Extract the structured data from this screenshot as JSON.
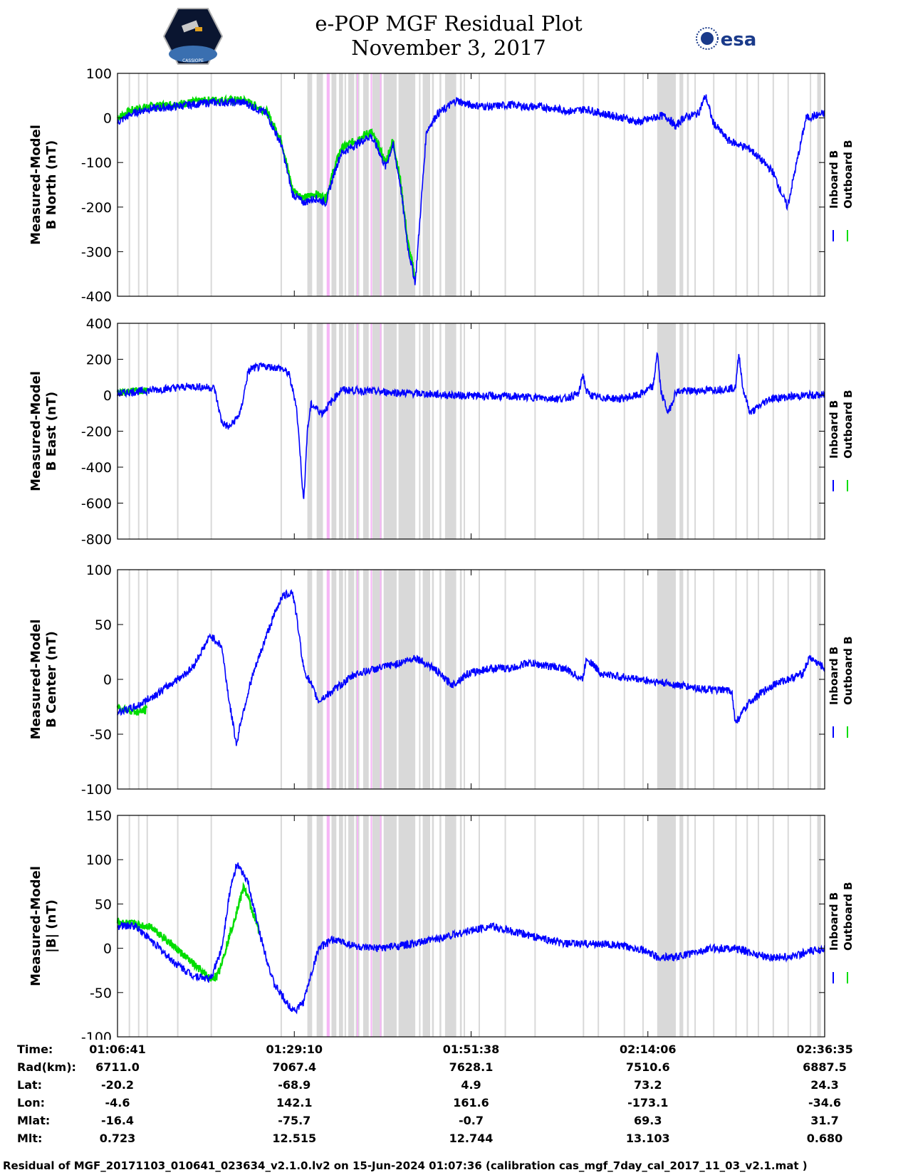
{
  "header": {
    "title_line1": "e-POP MGF Residual Plot",
    "title_line2": "November 3, 2017",
    "logo_left_text": "CASSIOPE",
    "logo_right_text": "esa"
  },
  "colors": {
    "inboard": "#0000ff",
    "outboard": "#00dd00",
    "gray_band": "#d9d9d9",
    "pink_band": "#f6b6f6"
  },
  "chart_data": [
    {
      "type": "line",
      "title": "",
      "ylabel_line1": "Measured-Model",
      "ylabel_line2": "B North (nT)",
      "ylim": [
        -400,
        100
      ],
      "yticks": [
        100,
        0,
        -100,
        -200,
        -300,
        -400
      ],
      "series": [
        {
          "name": "Inboard B",
          "color": "#0000ff",
          "x": [
            0,
            4,
            8,
            15,
            25,
            34,
            40,
            44,
            47,
            50,
            53,
            56,
            58,
            60,
            64,
            68,
            70,
            72,
            74,
            76,
            78,
            80,
            83,
            86,
            88,
            91,
            94,
            100,
            106,
            110,
            114,
            118,
            122,
            126,
            130,
            136,
            140,
            144,
            146,
            148,
            150,
            152,
            156,
            158,
            160,
            164,
            170,
            176,
            180,
            185,
            190
          ],
          "values": [
            -10,
            10,
            20,
            25,
            35,
            35,
            10,
            -60,
            -170,
            -190,
            -180,
            -190,
            -130,
            -80,
            -60,
            -40,
            -70,
            -110,
            -60,
            -150,
            -290,
            -370,
            -30,
            10,
            20,
            40,
            30,
            25,
            30,
            25,
            25,
            20,
            15,
            20,
            10,
            0,
            -10,
            0,
            5,
            0,
            -20,
            0,
            10,
            50,
            -10,
            -50,
            -70,
            -120,
            -200,
            0,
            10
          ]
        },
        {
          "name": "Outboard B",
          "color": "#00dd00",
          "x": [
            0,
            4,
            8,
            15,
            25,
            34,
            40,
            44,
            47,
            50,
            53,
            56,
            58,
            60,
            64,
            68,
            70,
            72,
            74,
            76,
            78,
            80
          ],
          "values": [
            0,
            18,
            25,
            30,
            40,
            40,
            15,
            -50,
            -160,
            -180,
            -170,
            -180,
            -120,
            -70,
            -50,
            -30,
            -60,
            -100,
            -50,
            -140,
            -280,
            -360
          ]
        }
      ],
      "legend": [
        "Inboard B",
        "Outboard B"
      ]
    },
    {
      "type": "line",
      "title": "",
      "ylabel_line1": "Measured-Model",
      "ylabel_line2": "B East (nT)",
      "ylim": [
        -800,
        400
      ],
      "yticks": [
        400,
        200,
        0,
        -200,
        -400,
        -600,
        -800
      ],
      "series": [
        {
          "name": "Inboard B",
          "color": "#0000ff",
          "x": [
            0,
            5,
            10,
            20,
            26,
            28,
            30,
            33,
            35,
            36,
            40,
            44,
            46,
            48,
            49,
            50,
            51,
            52,
            55,
            60,
            70,
            80,
            90,
            100,
            110,
            120,
            124,
            125,
            126,
            128,
            135,
            140,
            144,
            145,
            146,
            148,
            150,
            160,
            166,
            167,
            168,
            170,
            175,
            185,
            190
          ],
          "values": [
            10,
            20,
            30,
            50,
            40,
            -150,
            -180,
            -100,
            120,
            150,
            160,
            150,
            120,
            -50,
            -300,
            -600,
            -200,
            -50,
            -100,
            30,
            20,
            10,
            0,
            -5,
            -10,
            -20,
            10,
            120,
            20,
            -10,
            -20,
            0,
            50,
            250,
            20,
            -100,
            20,
            30,
            40,
            230,
            40,
            -100,
            -20,
            0,
            0
          ]
        },
        {
          "name": "Outboard B",
          "color": "#00dd00",
          "x": [
            0,
            5,
            8
          ],
          "values": [
            15,
            25,
            25
          ]
        }
      ],
      "legend": [
        "Inboard B",
        "Outboard B"
      ]
    },
    {
      "type": "line",
      "title": "",
      "ylabel_line1": "Measured-Model",
      "ylabel_line2": "B Center (nT)",
      "ylim": [
        -100,
        100
      ],
      "yticks": [
        100,
        50,
        0,
        -50,
        -100
      ],
      "series": [
        {
          "name": "Inboard B",
          "color": "#0000ff",
          "x": [
            0,
            5,
            12,
            20,
            25,
            28,
            30,
            32,
            33,
            36,
            40,
            44,
            47,
            48,
            50,
            54,
            58,
            64,
            70,
            76,
            80,
            85,
            88,
            90,
            94,
            100,
            106,
            110,
            120,
            125,
            126,
            130,
            140,
            150,
            160,
            165,
            166,
            170,
            176,
            180,
            184,
            186,
            190
          ],
          "values": [
            -30,
            -25,
            -10,
            10,
            40,
            30,
            -20,
            -60,
            -40,
            0,
            40,
            75,
            80,
            60,
            10,
            -20,
            -10,
            5,
            10,
            15,
            20,
            10,
            0,
            -5,
            5,
            10,
            10,
            15,
            10,
            0,
            20,
            5,
            0,
            -5,
            -10,
            -10,
            -40,
            -20,
            -5,
            0,
            5,
            20,
            10
          ]
        },
        {
          "name": "Outboard B",
          "color": "#00dd00",
          "x": [
            0,
            3,
            6,
            8
          ],
          "values": [
            -25,
            -28,
            -30,
            -27
          ]
        }
      ],
      "legend": [
        "Inboard B",
        "Outboard B"
      ]
    },
    {
      "type": "line",
      "title": "",
      "ylabel_line1": "Measured-Model",
      "ylabel_line2": "|B| (nT)",
      "ylim": [
        -100,
        150
      ],
      "yticks": [
        150,
        100,
        50,
        0,
        -50,
        -100
      ],
      "series": [
        {
          "name": "Inboard B",
          "color": "#0000ff",
          "x": [
            0,
            5,
            10,
            15,
            20,
            25,
            28,
            30,
            32,
            35,
            38,
            42,
            46,
            48,
            50,
            54,
            58,
            62,
            66,
            70,
            80,
            90,
            95,
            100,
            105,
            110,
            120,
            130,
            140,
            145,
            150,
            160,
            166,
            170,
            175,
            180,
            185,
            190
          ],
          "values": [
            25,
            25,
            5,
            -15,
            -30,
            -35,
            0,
            60,
            95,
            75,
            20,
            -40,
            -65,
            -70,
            -60,
            0,
            10,
            5,
            0,
            0,
            5,
            15,
            20,
            25,
            20,
            15,
            5,
            5,
            0,
            -10,
            -10,
            0,
            0,
            -5,
            -10,
            -10,
            -5,
            0
          ]
        },
        {
          "name": "Outboard B",
          "color": "#00dd00",
          "x": [
            0,
            3,
            6,
            9,
            25,
            27,
            34,
            38
          ],
          "values": [
            30,
            28,
            26,
            25,
            -35,
            -30,
            70,
            20
          ]
        }
      ],
      "legend": [
        "Inboard B",
        "Outboard B"
      ]
    }
  ],
  "xaxis": {
    "tick_labels": [
      "01:06:41",
      "01:29:10",
      "01:51:38",
      "02:14:06",
      "02:36:35"
    ],
    "tick_fractions": [
      0,
      0.25,
      0.5,
      0.75,
      1.0
    ]
  },
  "bands": {
    "gray_minutes": [
      [
        3.0,
        3.3
      ],
      [
        5.5,
        5.8
      ],
      [
        7.8,
        8.1
      ],
      [
        16.0,
        16.3
      ],
      [
        25.0,
        25.3
      ],
      [
        43.8,
        44.1
      ],
      [
        51.0,
        52.3
      ],
      [
        53.5,
        55.2
      ],
      [
        57.5,
        58.8
      ],
      [
        59.5,
        60.6
      ],
      [
        61.0,
        61.4
      ],
      [
        62.0,
        63.6
      ],
      [
        64.0,
        65.0
      ],
      [
        66.0,
        67.5
      ],
      [
        68.5,
        71.0
      ],
      [
        71.5,
        75.0
      ],
      [
        75.5,
        80.0
      ],
      [
        81.0,
        81.4
      ],
      [
        82.0,
        84.0
      ],
      [
        84.5,
        85.0
      ],
      [
        86.5,
        87.0
      ],
      [
        88.0,
        91.0
      ],
      [
        92.0,
        92.5
      ],
      [
        93.0,
        93.3
      ],
      [
        97.0,
        97.3
      ],
      [
        104.0,
        104.3
      ],
      [
        112.0,
        112.3
      ],
      [
        125.0,
        125.3
      ],
      [
        129.0,
        129.3
      ],
      [
        136.0,
        136.3
      ],
      [
        141.0,
        141.3
      ],
      [
        145.0,
        150.0
      ],
      [
        151.0,
        152.0
      ],
      [
        153.0,
        153.5
      ],
      [
        155.0,
        155.3
      ],
      [
        160.0,
        160.3
      ],
      [
        166.0,
        166.3
      ],
      [
        169.0,
        169.3
      ],
      [
        172.0,
        172.3
      ],
      [
        176.0,
        176.3
      ],
      [
        180.0,
        180.3
      ],
      [
        186.0,
        186.3
      ],
      [
        188.0,
        189.0
      ]
    ],
    "pink_minutes": [
      [
        56.2,
        57.0
      ],
      [
        64.3,
        64.6
      ],
      [
        68.0,
        68.4
      ],
      [
        70.5,
        70.9
      ]
    ]
  },
  "orbit_table": {
    "rows": [
      {
        "label": "Time:",
        "values": [
          "01:06:41",
          "01:29:10",
          "01:51:38",
          "02:14:06",
          "02:36:35"
        ]
      },
      {
        "label": "Rad(km):",
        "values": [
          "6711.0",
          "7067.4",
          "7628.1",
          "7510.6",
          "6887.5"
        ]
      },
      {
        "label": "Lat:",
        "values": [
          "-20.2",
          "-68.9",
          "4.9",
          "73.2",
          "24.3"
        ]
      },
      {
        "label": "Lon:",
        "values": [
          "-4.6",
          "142.1",
          "161.6",
          "-173.1",
          "-34.6"
        ]
      },
      {
        "label": "Mlat:",
        "values": [
          "-16.4",
          "-75.7",
          "-0.7",
          "69.3",
          "31.7"
        ]
      },
      {
        "label": "Mlt:",
        "values": [
          "0.723",
          "12.515",
          "12.744",
          "13.103",
          "0.680"
        ]
      }
    ]
  },
  "footer": "Residual of MGF_20171103_010641_023634_v2.1.0.lv2 on 15-Jun-2024 01:07:36 (calibration cas_mgf_7day_cal_2017_11_03_v2.1.mat )"
}
